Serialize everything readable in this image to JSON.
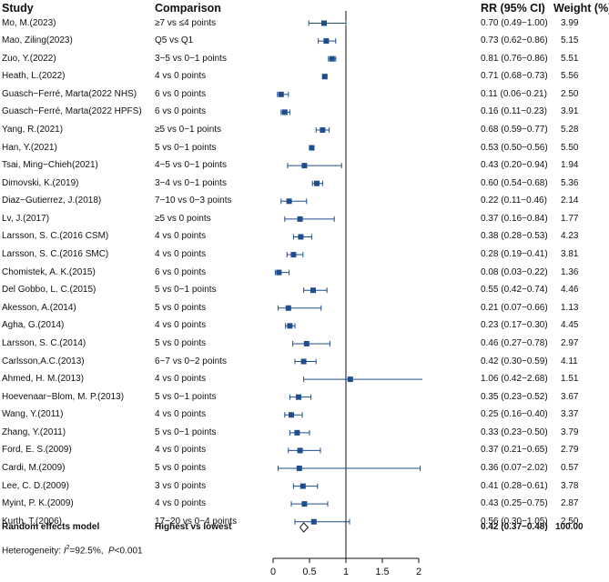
{
  "headers": {
    "study": "Study",
    "comparison": "Comparison",
    "rr": "RR (95% CI)",
    "weight": "Weight (%)"
  },
  "colors": {
    "marker": "#1f4e8c",
    "text": "#111111",
    "axis": "#111111"
  },
  "chart_data": {
    "type": "forest",
    "x_axis": {
      "ticks": [
        0,
        0.5,
        1,
        1.5,
        2
      ],
      "tick_labels": [
        "0",
        "0.5",
        "1",
        "1.5",
        "2"
      ],
      "xlim": [
        0,
        2
      ],
      "reference_line": 1
    },
    "studies": [
      {
        "study": "Mo, M.(2023)",
        "comparison": "≥7 vs ≤4 points",
        "rr": 0.7,
        "lo": 0.49,
        "hi": 1.0,
        "rr_text": "0.70 (0.49−1.00)",
        "weight": "3.99"
      },
      {
        "study": "Mao, Ziling(2023)",
        "comparison": "Q5 vs Q1",
        "rr": 0.73,
        "lo": 0.62,
        "hi": 0.86,
        "rr_text": "0.73 (0.62−0.86)",
        "weight": "5.15"
      },
      {
        "study": "Zuo, Y.(2022)",
        "comparison": "3−5 vs 0−1 points",
        "rr": 0.81,
        "lo": 0.76,
        "hi": 0.86,
        "rr_text": "0.81 (0.76−0.86)",
        "weight": "5.51"
      },
      {
        "study": "Heath, L.(2022)",
        "comparison": "4 vs 0 points",
        "rr": 0.71,
        "lo": 0.68,
        "hi": 0.73,
        "rr_text": "0.71 (0.68−0.73)",
        "weight": "5.56"
      },
      {
        "study": "Guasch−Ferré, Marta(2022 NHS)",
        "comparison": "6 vs 0 points",
        "rr": 0.11,
        "lo": 0.06,
        "hi": 0.21,
        "rr_text": "0.11 (0.06−0.21)",
        "weight": "2.50"
      },
      {
        "study": "Guasch−Ferré, Marta(2022 HPFS)",
        "comparison": "6 vs 0 points",
        "rr": 0.16,
        "lo": 0.11,
        "hi": 0.23,
        "rr_text": "0.16 (0.11−0.23)",
        "weight": "3.91"
      },
      {
        "study": "Yang, R.(2021)",
        "comparison": "≥5 vs 0−1 points",
        "rr": 0.68,
        "lo": 0.59,
        "hi": 0.77,
        "rr_text": "0.68 (0.59−0.77)",
        "weight": "5.28"
      },
      {
        "study": "Han, Y.(2021)",
        "comparison": "5 vs 0−1 points",
        "rr": 0.53,
        "lo": 0.5,
        "hi": 0.56,
        "rr_text": "0.53 (0.50−0.56)",
        "weight": "5.50"
      },
      {
        "study": "Tsai, Ming−Chieh(2021)",
        "comparison": "4−5 vs 0−1 points",
        "rr": 0.43,
        "lo": 0.2,
        "hi": 0.94,
        "rr_text": "0.43 (0.20−0.94)",
        "weight": "1.94"
      },
      {
        "study": "Dimovski, K.(2019)",
        "comparison": "3−4 vs 0−1 points",
        "rr": 0.6,
        "lo": 0.54,
        "hi": 0.68,
        "rr_text": "0.60 (0.54−0.68)",
        "weight": "5.36"
      },
      {
        "study": "Diaz−Gutierrez, J.(2018)",
        "comparison": "7−10 vs 0−3 points",
        "rr": 0.22,
        "lo": 0.11,
        "hi": 0.46,
        "rr_text": "0.22 (0.11−0.46)",
        "weight": "2.14"
      },
      {
        "study": "Lv, J.(2017)",
        "comparison": "≥5 vs 0 points",
        "rr": 0.37,
        "lo": 0.16,
        "hi": 0.84,
        "rr_text": "0.37 (0.16−0.84)",
        "weight": "1.77"
      },
      {
        "study": "Larsson, S. C.(2016 CSM)",
        "comparison": "4 vs 0 points",
        "rr": 0.38,
        "lo": 0.28,
        "hi": 0.53,
        "rr_text": "0.38 (0.28−0.53)",
        "weight": "4.23"
      },
      {
        "study": "Larsson, S. C.(2016 SMC)",
        "comparison": "4 vs 0 points",
        "rr": 0.28,
        "lo": 0.19,
        "hi": 0.41,
        "rr_text": "0.28 (0.19−0.41)",
        "weight": "3.81"
      },
      {
        "study": "Chomistek, A. K.(2015)",
        "comparison": "6 vs 0 points",
        "rr": 0.08,
        "lo": 0.03,
        "hi": 0.22,
        "rr_text": "0.08 (0.03−0.22)",
        "weight": "1.36"
      },
      {
        "study": "Del Gobbo, L. C.(2015)",
        "comparison": "5 vs 0−1 points",
        "rr": 0.55,
        "lo": 0.42,
        "hi": 0.74,
        "rr_text": "0.55 (0.42−0.74)",
        "weight": "4.46"
      },
      {
        "study": "Akesson, A.(2014)",
        "comparison": "5 vs 0  points",
        "rr": 0.21,
        "lo": 0.07,
        "hi": 0.66,
        "rr_text": "0.21 (0.07−0.66)",
        "weight": "1.13"
      },
      {
        "study": "Agha, G.(2014)",
        "comparison": "4 vs 0 points",
        "rr": 0.23,
        "lo": 0.17,
        "hi": 0.3,
        "rr_text": "0.23 (0.17−0.30)",
        "weight": "4.45"
      },
      {
        "study": "Larsson, S. C.(2014)",
        "comparison": "5 vs 0 points",
        "rr": 0.46,
        "lo": 0.27,
        "hi": 0.78,
        "rr_text": "0.46 (0.27−0.78)",
        "weight": "2.97"
      },
      {
        "study": "Carlsson,A.C.(2013)",
        "comparison": "6−7 vs 0−2 points",
        "rr": 0.42,
        "lo": 0.3,
        "hi": 0.59,
        "rr_text": "0.42 (0.30−0.59)",
        "weight": "4.11"
      },
      {
        "study": "Ahmed, H. M.(2013)",
        "comparison": "4 vs 0 points",
        "rr": 1.06,
        "lo": 0.42,
        "hi": 2.68,
        "rr_text": "1.06 (0.42−2.68)",
        "weight": "1.51"
      },
      {
        "study": "Hoevenaar−Blom, M. P.(2013)",
        "comparison": "5 vs 0−1 points",
        "rr": 0.35,
        "lo": 0.23,
        "hi": 0.52,
        "rr_text": "0.35 (0.23−0.52)",
        "weight": "3.67"
      },
      {
        "study": "Wang, Y.(2011)",
        "comparison": "4 vs 0 points",
        "rr": 0.25,
        "lo": 0.16,
        "hi": 0.4,
        "rr_text": "0.25 (0.16−0.40)",
        "weight": "3.37"
      },
      {
        "study": "Zhang, Y.(2011)",
        "comparison": "5 vs 0−1 points",
        "rr": 0.33,
        "lo": 0.23,
        "hi": 0.5,
        "rr_text": "0.33 (0.23−0.50)",
        "weight": "3.79"
      },
      {
        "study": "Ford, E. S.(2009)",
        "comparison": "4 vs 0 points",
        "rr": 0.37,
        "lo": 0.21,
        "hi": 0.65,
        "rr_text": "0.37 (0.21−0.65)",
        "weight": "2.79"
      },
      {
        "study": "Cardi, M.(2009)",
        "comparison": "5 vs 0 points",
        "rr": 0.36,
        "lo": 0.07,
        "hi": 2.02,
        "rr_text": "0.36 (0.07−2.02)",
        "weight": "0.57"
      },
      {
        "study": "Lee, C. D.(2009)",
        "comparison": "3 vs 0 points",
        "rr": 0.41,
        "lo": 0.28,
        "hi": 0.61,
        "rr_text": "0.41 (0.28−0.61)",
        "weight": "3.78"
      },
      {
        "study": "Myint, P. K.(2009)",
        "comparison": "4 vs 0 points",
        "rr": 0.43,
        "lo": 0.25,
        "hi": 0.75,
        "rr_text": "0.43 (0.25−0.75)",
        "weight": "2.87"
      },
      {
        "study": "Kurth, T.(2006)",
        "comparison": "17−20 vs 0−4 points",
        "rr": 0.56,
        "lo": 0.3,
        "hi": 1.05,
        "rr_text": "0.56 (0.30−1.05)",
        "weight": "2.50"
      }
    ],
    "summary": {
      "label": "Random effects model",
      "comparison": "Highest vs lowest",
      "rr": 0.42,
      "lo": 0.37,
      "hi": 0.48,
      "rr_text": "0.42 (0.37−0.48)",
      "weight": "100.00"
    },
    "heterogeneity": {
      "prefix": "Heterogeneity: ",
      "i2_symbol": "I",
      "i2_sup": "2",
      "i2_value": "=92.5%,  ",
      "p_symbol": "P",
      "p_value": "<0.001"
    }
  }
}
